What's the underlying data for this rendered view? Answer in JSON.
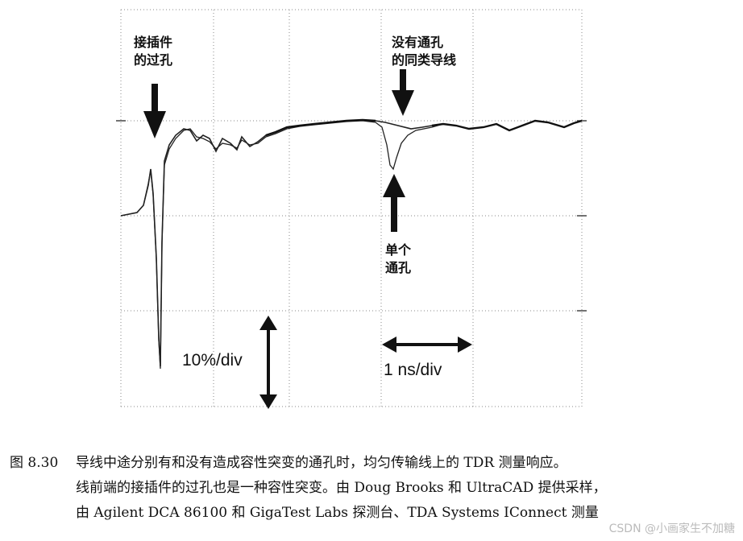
{
  "annotations": {
    "connector_via": [
      "接插件",
      "的过孔"
    ],
    "no_via_trace": [
      "没有通孔",
      "的同类导线"
    ],
    "single_via": [
      "单个",
      "通孔"
    ]
  },
  "scale": {
    "vertical": "10%/div",
    "horizontal": "1 ns/div"
  },
  "caption": {
    "number": "图 8.30",
    "lines": [
      "导线中途分别有和没有造成容性突变的通孔时，均匀传输线上的 TDR 测量响应。",
      "线前端的接插件的过孔也是一种容性突变。由 Doug Brooks 和 UltraCAD 提供采样，",
      "由 Agilent DCA 86100 和 GigaTest Labs 探测台、TDA Systems IConnect 测量"
    ]
  },
  "watermark": "CSDN @小画家生不加糖"
}
